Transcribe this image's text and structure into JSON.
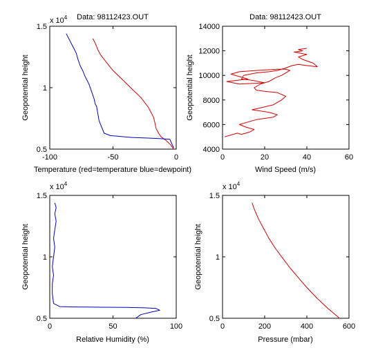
{
  "chart_data": [
    {
      "type": "line",
      "title": "Data: 98112423.OUT",
      "xlabel": "Temperature (red=temperature blue=dewpoint)",
      "ylabel": "Geopotential height",
      "exponent_label": "x 10",
      "exponent_power": "4",
      "xlim": [
        -100,
        0
      ],
      "ylim": [
        5000,
        15000
      ],
      "xticks": [
        -100,
        -50,
        0
      ],
      "yticks": [
        5000,
        10000,
        15000
      ],
      "xtick_labels": [
        "-100",
        "-50",
        "0"
      ],
      "ytick_labels": [
        "0.5",
        "1",
        "1.5"
      ],
      "grid": false,
      "series": [
        {
          "color": "#d40000",
          "x": [
            -2,
            -4,
            -8,
            -12,
            -14,
            -16,
            -17,
            -18,
            -20,
            -22,
            -25,
            -28,
            -32,
            -36,
            -40,
            -45,
            -50,
            -54,
            -57,
            -60,
            -62,
            -64,
            -66
          ],
          "y": [
            5000,
            5300,
            5700,
            6000,
            6300,
            6700,
            7200,
            7600,
            8000,
            8400,
            8800,
            9200,
            9600,
            10000,
            10400,
            10900,
            11400,
            11900,
            12300,
            12700,
            13100,
            13600,
            14000
          ]
        },
        {
          "color": "#0000c0",
          "x": [
            -2,
            -5,
            -12,
            -22,
            -35,
            -52,
            -57,
            -59,
            -61,
            -62,
            -63,
            -64,
            -65,
            -67,
            -69,
            -72,
            -74,
            -76,
            -78,
            -79,
            -81,
            -83,
            -85,
            -87
          ],
          "y": [
            5100,
            5800,
            5850,
            5900,
            5950,
            6100,
            6300,
            6800,
            7300,
            7900,
            8500,
            8650,
            9100,
            9700,
            10300,
            10900,
            11400,
            11800,
            12400,
            12800,
            13200,
            13600,
            14000,
            14400
          ]
        }
      ]
    },
    {
      "type": "line",
      "title": "Data: 98112423.OUT",
      "xlabel": "Wind Speed (m/s)",
      "ylabel": "Geopotential height",
      "xlim": [
        0,
        60
      ],
      "ylim": [
        4000,
        14000
      ],
      "xticks": [
        0,
        20,
        40,
        60
      ],
      "yticks": [
        4000,
        6000,
        8000,
        10000,
        12000,
        14000
      ],
      "xtick_labels": [
        "0",
        "20",
        "40",
        "60"
      ],
      "ytick_labels": [
        "4000",
        "6000",
        "8000",
        "10000",
        "12000",
        "14000"
      ],
      "grid": false,
      "series": [
        {
          "color": "#d40000",
          "x": [
            1,
            4,
            7,
            9,
            13,
            15,
            11,
            8,
            12,
            16,
            20,
            24,
            26,
            22,
            14,
            24,
            28,
            30,
            26,
            20,
            16,
            15,
            18,
            22,
            25,
            28,
            30,
            32,
            30,
            26,
            16,
            8,
            4,
            12,
            2,
            8,
            20,
            14,
            9,
            10,
            16,
            22,
            26,
            30,
            33,
            36,
            40,
            45,
            43,
            38,
            36,
            40,
            34,
            38,
            36,
            40
          ],
          "y": [
            5000,
            5150,
            5300,
            5200,
            5400,
            5600,
            5800,
            6000,
            6200,
            6400,
            6500,
            6600,
            6800,
            7000,
            7200,
            7600,
            8000,
            8300,
            8600,
            8700,
            8800,
            9000,
            9300,
            9500,
            9800,
            10000,
            10200,
            10400,
            10500,
            10500,
            10400,
            10300,
            10100,
            9700,
            9500,
            9300,
            9400,
            9600,
            9700,
            10000,
            10200,
            10300,
            10400,
            10600,
            10800,
            10900,
            10800,
            10700,
            11000,
            11300,
            11500,
            11700,
            11900,
            12000,
            12100,
            12200
          ]
        }
      ]
    },
    {
      "type": "line",
      "title": "",
      "xlabel": "Relative Humidity (%)",
      "ylabel": "Geopotential height",
      "exponent_label": "x 10",
      "exponent_power": "4",
      "xlim": [
        0,
        100
      ],
      "ylim": [
        5000,
        15000
      ],
      "xticks": [
        0,
        50,
        100
      ],
      "yticks": [
        5000,
        10000,
        15000
      ],
      "xtick_labels": [
        "0",
        "50",
        "100"
      ],
      "ytick_labels": [
        "0.5",
        "1",
        "1.5"
      ],
      "grid": false,
      "series": [
        {
          "color": "#0000c0",
          "x": [
            68,
            72,
            80,
            87,
            84,
            75,
            60,
            40,
            20,
            8,
            3,
            2,
            2,
            3,
            2,
            3,
            4,
            3,
            4,
            5,
            4,
            5,
            4
          ],
          "y": [
            5000,
            5300,
            5500,
            5650,
            5800,
            5850,
            5880,
            5900,
            5920,
            5950,
            6200,
            7000,
            7800,
            8500,
            9200,
            10000,
            10800,
            11500,
            12200,
            12900,
            13500,
            14000,
            14400
          ]
        }
      ]
    },
    {
      "type": "line",
      "title": "",
      "xlabel": "Pressure (mbar)",
      "ylabel": "Geopotential height",
      "exponent_label": "x 10",
      "exponent_power": "4",
      "xlim": [
        0,
        600
      ],
      "ylim": [
        5000,
        15000
      ],
      "xticks": [
        0,
        200,
        400,
        600
      ],
      "yticks": [
        5000,
        10000,
        15000
      ],
      "xtick_labels": [
        "0",
        "200",
        "400",
        "600"
      ],
      "ytick_labels": [
        "0.5",
        "1",
        "1.5"
      ],
      "grid": false,
      "series": [
        {
          "color": "#d40000",
          "x": [
            555,
            500,
            450,
            400,
            360,
            320,
            285,
            250,
            220,
            195,
            170,
            150,
            140
          ],
          "y": [
            5000,
            5800,
            6600,
            7500,
            8300,
            9100,
            9900,
            10700,
            11500,
            12300,
            13100,
            13900,
            14400
          ]
        }
      ]
    }
  ]
}
